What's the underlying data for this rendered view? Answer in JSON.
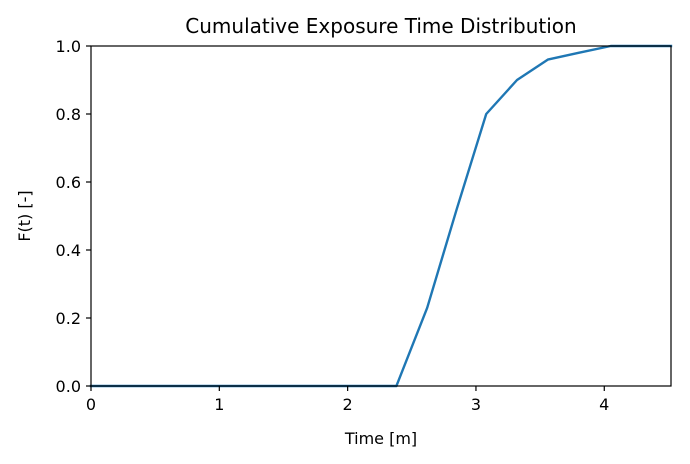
{
  "chart_data": {
    "type": "line",
    "title": "Cumulative Exposure Time Distribution",
    "xlabel": "Time [m]",
    "ylabel": "F(t) [-]",
    "xlim": [
      0,
      4.52
    ],
    "ylim": [
      0,
      1.0
    ],
    "xticks": [
      0,
      1,
      2,
      3,
      4
    ],
    "yticks": [
      0.0,
      0.2,
      0.4,
      0.6,
      0.8,
      1.0
    ],
    "xtick_labels": [
      "0",
      "1",
      "2",
      "3",
      "4"
    ],
    "ytick_labels": [
      "0.0",
      "0.2",
      "0.4",
      "0.6",
      "0.8",
      "1.0"
    ],
    "grid": false,
    "series": [
      {
        "color": "#1f77b4",
        "x": [
          0,
          2.38,
          2.62,
          2.85,
          3.08,
          3.32,
          3.56,
          3.8,
          4.05,
          4.52
        ],
        "y": [
          0,
          0,
          0.23,
          0.52,
          0.8,
          0.9,
          0.96,
          0.98,
          1.0,
          1.0
        ]
      }
    ]
  }
}
